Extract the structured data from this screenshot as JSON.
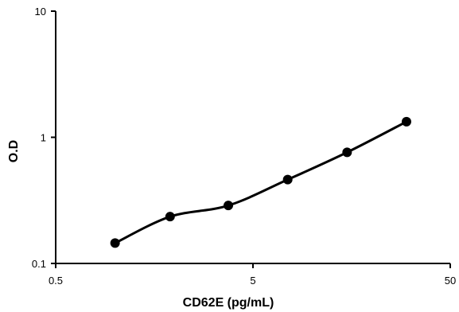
{
  "chart_data": {
    "type": "line",
    "title": "",
    "xlabel": "CD62E (pg/mL)",
    "ylabel": "O.D",
    "xscale": "log",
    "yscale": "log",
    "xlim": [
      0.5,
      50
    ],
    "ylim": [
      0.1,
      10
    ],
    "xticks": [
      {
        "value": 0.5,
        "label": "0.5"
      },
      {
        "value": 5,
        "label": "5"
      },
      {
        "value": 50,
        "label": "50"
      }
    ],
    "yticks": [
      {
        "value": 0.1,
        "label": "0.1"
      },
      {
        "value": 1,
        "label": "1"
      },
      {
        "value": 10,
        "label": "10"
      }
    ],
    "grid": false,
    "legend": "none",
    "series": [
      {
        "x": [
          1.0,
          1.9,
          3.75,
          7.5,
          15,
          30
        ],
        "y": [
          0.145,
          0.235,
          0.288,
          0.462,
          0.76,
          1.33
        ],
        "smooth": true,
        "marker": "circle"
      }
    ],
    "colors": {
      "line": "#000000",
      "marker": "#000000",
      "axis": "#000000"
    }
  }
}
